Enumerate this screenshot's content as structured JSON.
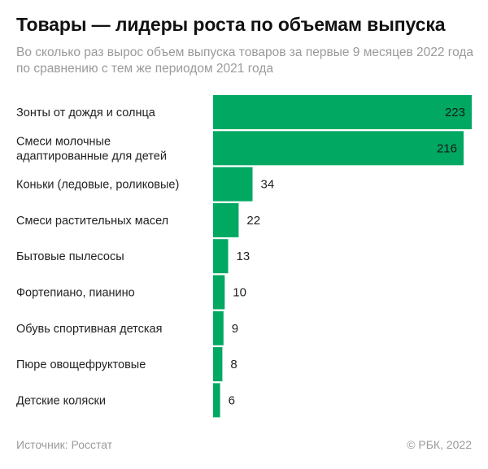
{
  "header": {
    "title": "Товары — лидеры роста по объемам выпуска",
    "subtitle": "Во сколько раз вырос объем выпуска товаров за первые 9 месяцев 2022 года по сравнению с тем же периодом 2021 года"
  },
  "footer": {
    "source": "Источник: Росстат",
    "copyright": "© РБК, 2022"
  },
  "colors": {
    "bar": "#00a862",
    "label_inside": "#1a1a1a",
    "label_outside": "#222222"
  },
  "chart_data": {
    "type": "bar",
    "orientation": "horizontal",
    "title": "Товары — лидеры роста по объемам выпуска",
    "xlabel": "",
    "ylabel": "",
    "xlim": [
      0,
      223
    ],
    "grid": false,
    "categories": [
      [
        "Зонты от дождя и солнца"
      ],
      [
        "Смеси молочные",
        "адаптированные для детей"
      ],
      [
        "Коньки (ледовые, роликовые)"
      ],
      [
        "Смеси растительных масел"
      ],
      [
        "Бытовые пылесосы"
      ],
      [
        "Фортепиано, пианино"
      ],
      [
        "Обувь спортивная детская"
      ],
      [
        "Пюре овощефруктовые"
      ],
      [
        "Детские коляски"
      ]
    ],
    "values": [
      223,
      216,
      34,
      22,
      13,
      10,
      9,
      8,
      6
    ]
  }
}
